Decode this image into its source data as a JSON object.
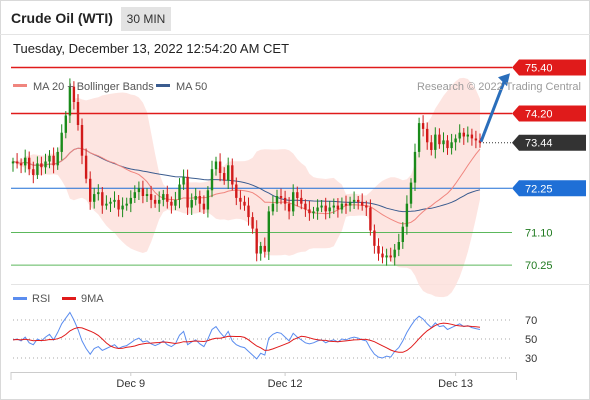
{
  "header": {
    "instrument": "Crude Oil (WTI)",
    "timeframe": "30 MIN",
    "datetime": "Tuesday, December 13, 2022 12:54:20 AM CET"
  },
  "colors": {
    "resistance": "#e01b1b",
    "support": "#5cb85c",
    "pivot": "#1f6fd6",
    "last_price": "#333333",
    "candle_up": "#1a8a1a",
    "candle_down": "#d11a1a",
    "bollinger_fill": "#fde0dc",
    "ma20": "#f0857e",
    "ma50": "#3b5c8f",
    "rsi": "#5b8def",
    "rsi_ma": "#e01b1b",
    "arrow": "#2a6ebb"
  },
  "chart_data": [
    {
      "type": "candlestick",
      "title": "Crude Oil (WTI)",
      "timeframe": "30 MIN",
      "ylim": [
        69.6,
        75.7
      ],
      "x_ticks": [
        "Dec 9",
        "Dec 12",
        "Dec 13"
      ],
      "grid": false,
      "legend_placement": "top-left",
      "legend": [
        {
          "label": "MA 20 + Bollinger Bands",
          "color": "#f0857e"
        },
        {
          "label": "MA 50",
          "color": "#3b5c8f"
        }
      ],
      "watermark": "Research © 2022 Trading Central",
      "levels": [
        {
          "value": 75.4,
          "label": "75.40",
          "role": "resistance",
          "style": "badge"
        },
        {
          "value": 74.2,
          "label": "74.20",
          "role": "resistance",
          "style": "badge"
        },
        {
          "value": 73.44,
          "label": "73.44",
          "role": "last",
          "style": "badge"
        },
        {
          "value": 72.25,
          "label": "72.25",
          "role": "pivot",
          "style": "badge"
        },
        {
          "value": 71.1,
          "label": "71.10",
          "role": "support",
          "style": "text"
        },
        {
          "value": 70.25,
          "label": "70.25",
          "role": "support",
          "style": "text"
        }
      ],
      "close": [
        72.95,
        72.9,
        72.85,
        73.05,
        72.75,
        72.6,
        72.9,
        72.8,
        72.95,
        73.1,
        72.85,
        73.2,
        73.7,
        74.15,
        74.9,
        74.5,
        73.9,
        73.1,
        72.5,
        71.9,
        72.1,
        72.15,
        71.8,
        71.85,
        71.9,
        71.95,
        71.7,
        71.8,
        71.85,
        72.0,
        72.15,
        72.25,
        72.05,
        72.1,
        71.95,
        71.85,
        71.95,
        72.1,
        71.9,
        71.8,
        71.95,
        72.35,
        72.55,
        71.75,
        71.95,
        72.05,
        71.85,
        71.7,
        72.2,
        72.75,
        72.95,
        72.65,
        72.45,
        72.85,
        72.35,
        72.0,
        71.9,
        71.8,
        71.5,
        71.2,
        70.55,
        70.75,
        70.6,
        71.65,
        71.85,
        72.05,
        72.0,
        71.85,
        71.65,
        72.15,
        72.0,
        71.85,
        71.7,
        71.6,
        71.65,
        71.75,
        71.8,
        71.65,
        71.75,
        71.8,
        71.7,
        71.85,
        71.8,
        71.9,
        71.95,
        71.9,
        71.8,
        71.75,
        71.15,
        70.75,
        70.55,
        70.45,
        70.5,
        70.45,
        70.65,
        70.85,
        71.25,
        71.85,
        72.4,
        73.2,
        73.95,
        73.8,
        73.45,
        73.25,
        73.65,
        73.4,
        73.5,
        73.3,
        73.45,
        73.55,
        73.7,
        73.6,
        73.65,
        73.55,
        73.5,
        73.44
      ],
      "series": [
        {
          "name": "MA 20",
          "role": "ma20"
        },
        {
          "name": "MA 50",
          "role": "ma50"
        }
      ],
      "projection": {
        "from": 73.44,
        "to": 75.3
      }
    },
    {
      "type": "line",
      "title": "RSI",
      "ylim": [
        20,
        80
      ],
      "y_ticks": [
        70,
        50,
        30
      ],
      "legend_placement": "top-left",
      "series": [
        {
          "name": "RSI",
          "values": [
            49,
            50,
            48,
            52,
            46,
            44,
            50,
            48,
            52,
            55,
            49,
            57,
            66,
            72,
            78,
            70,
            60,
            48,
            40,
            34,
            40,
            42,
            38,
            40,
            42,
            44,
            40,
            42,
            43,
            46,
            49,
            51,
            47,
            48,
            45,
            43,
            45,
            48,
            44,
            42,
            45,
            54,
            58,
            44,
            47,
            49,
            45,
            42,
            50,
            60,
            63,
            57,
            52,
            58,
            48,
            44,
            42,
            41,
            37,
            33,
            29,
            35,
            33,
            51,
            55,
            57,
            56,
            52,
            48,
            56,
            52,
            49,
            46,
            45,
            46,
            48,
            49,
            46,
            48,
            49,
            47,
            50,
            49,
            51,
            52,
            51,
            49,
            48,
            40,
            34,
            31,
            30,
            32,
            31,
            37,
            41,
            48,
            57,
            64,
            70,
            74,
            71,
            66,
            62,
            67,
            63,
            64,
            60,
            62,
            64,
            66,
            63,
            64,
            62,
            61,
            60
          ]
        },
        {
          "name": "9MA",
          "role": "rsi_ma"
        }
      ]
    }
  ]
}
